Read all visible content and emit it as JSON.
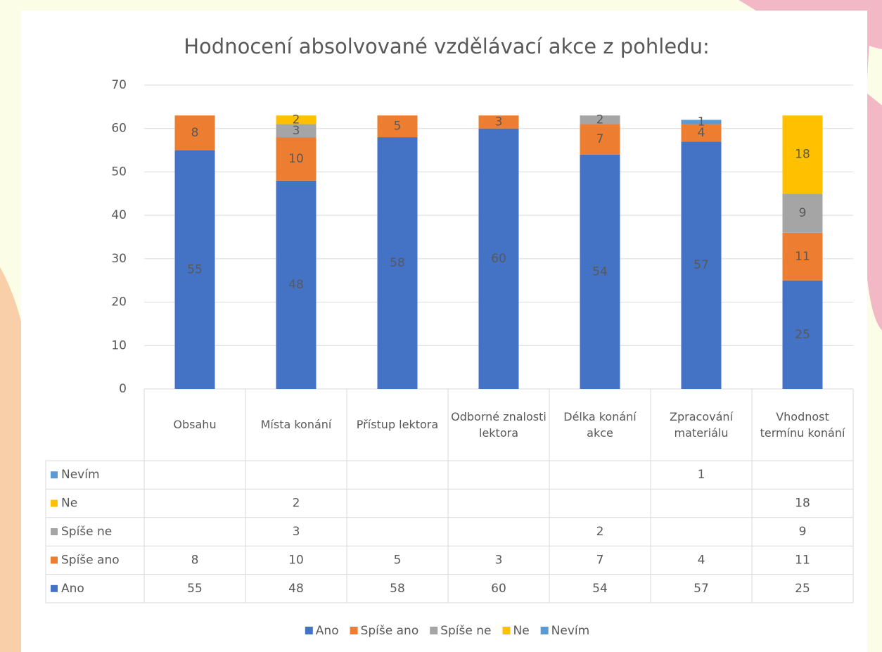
{
  "chart_data": {
    "type": "stacked-bar",
    "title": "Hodnocení absolvované vzdělávací akce z pohledu:",
    "categories": [
      "Obsahu",
      "Místa konání",
      "Přístup lektora",
      "Odborné znalosti lektora",
      "Délka konání akce",
      "Zpracování materiálu",
      "Vhodnost termínu konání"
    ],
    "series": [
      {
        "name": "Ano",
        "color": "#4472c4",
        "values": [
          55,
          48,
          58,
          60,
          54,
          57,
          25
        ]
      },
      {
        "name": "Spíše ano",
        "color": "#ed7d31",
        "values": [
          8,
          10,
          5,
          3,
          7,
          4,
          11
        ]
      },
      {
        "name": "Spíše ne",
        "color": "#a5a5a5",
        "values": [
          null,
          3,
          null,
          null,
          2,
          null,
          9
        ]
      },
      {
        "name": "Ne",
        "color": "#ffc000",
        "values": [
          null,
          2,
          null,
          null,
          null,
          null,
          18
        ]
      },
      {
        "name": "Nevím",
        "color": "#5b9bd5",
        "values": [
          null,
          null,
          null,
          null,
          null,
          1,
          null
        ]
      }
    ],
    "ylim": [
      0,
      70
    ],
    "yticks": [
      0,
      10,
      20,
      30,
      40,
      50,
      60,
      70
    ],
    "grid": true
  }
}
